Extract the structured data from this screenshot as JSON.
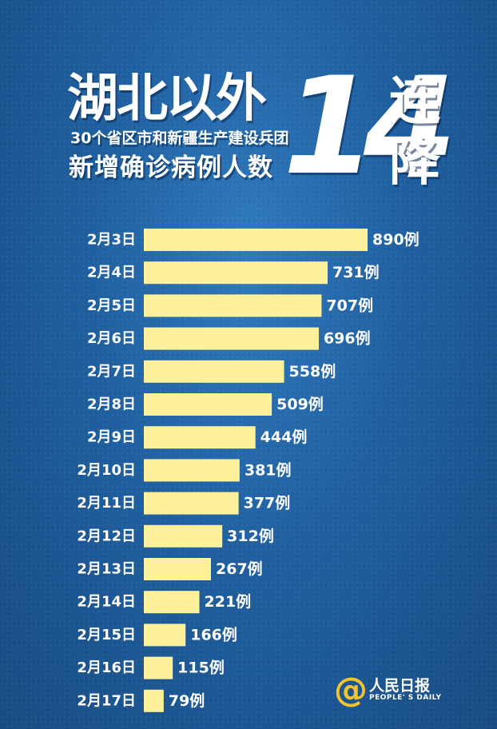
{
  "header": {
    "title": "湖北以外",
    "subtitle_line1": "30个省区市和新疆生产建设兵团",
    "subtitle_line2": "新增确诊病例人数",
    "big_number": "14",
    "side_char_1": "连",
    "side_char_2": "降"
  },
  "logo": {
    "at_symbol": "@",
    "name_cn": "人民日报",
    "name_en": "PEOPLE' S DAILY"
  },
  "colors": {
    "background": "#1f5f9f",
    "bar": "#fdf29b",
    "text": "#ffffff",
    "logo_accent": "#f1c232"
  },
  "chart_data": {
    "type": "bar",
    "orientation": "horizontal",
    "categories": [
      "2月3日",
      "2月4日",
      "2月5日",
      "2月6日",
      "2月7日",
      "2月8日",
      "2月9日",
      "2月10日",
      "2月11日",
      "2月12日",
      "2月13日",
      "2月14日",
      "2月15日",
      "2月16日",
      "2月17日"
    ],
    "values": [
      890,
      731,
      707,
      696,
      558,
      509,
      444,
      381,
      377,
      312,
      267,
      221,
      166,
      115,
      79
    ],
    "value_labels": [
      "890例",
      "731例",
      "707例",
      "696例",
      "558例",
      "509例",
      "444例",
      "381例",
      "377例",
      "312例",
      "267例",
      "221例",
      "166例",
      "115例",
      "79例"
    ],
    "xlim": [
      0,
      890
    ],
    "grid": false,
    "legend": "none"
  }
}
